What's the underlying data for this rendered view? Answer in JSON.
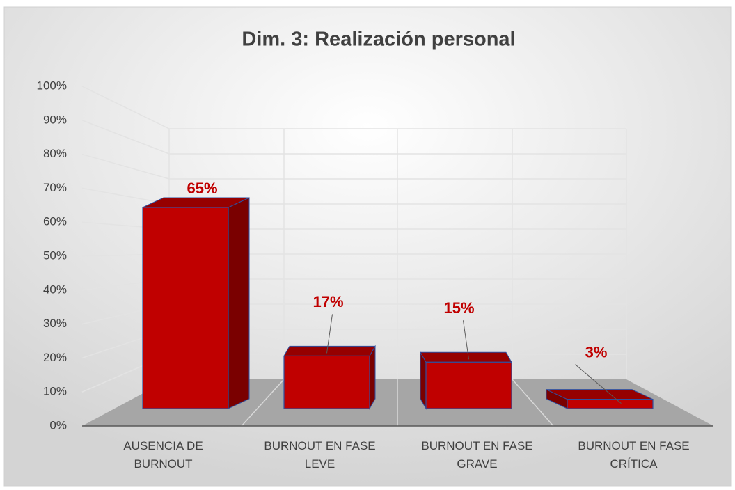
{
  "chart_data": {
    "type": "bar3d",
    "title": "Dim. 3: Realización personal",
    "categories": [
      "AUSENCIA DE BURNOUT",
      "BURNOUT EN FASE LEVE",
      "BURNOUT EN FASE GRAVE",
      "BURNOUT EN FASE CRÍTICA"
    ],
    "values": [
      65,
      17,
      15,
      3
    ],
    "value_labels": [
      "65%",
      "17%",
      "15%",
      "3%"
    ],
    "color": "#c00000",
    "label_color": "#c00000",
    "ylim": [
      0,
      100
    ],
    "yticks": [
      {
        "value": 0,
        "label": "0%"
      },
      {
        "value": 10,
        "label": "10%"
      },
      {
        "value": 20,
        "label": "20%"
      },
      {
        "value": 30,
        "label": "30%"
      },
      {
        "value": 40,
        "label": "40%"
      },
      {
        "value": 50,
        "label": "50%"
      },
      {
        "value": 60,
        "label": "60%"
      },
      {
        "value": 70,
        "label": "70%"
      },
      {
        "value": 80,
        "label": "80%"
      },
      {
        "value": 90,
        "label": "90%"
      },
      {
        "value": 100,
        "label": "100%"
      }
    ],
    "grid": true
  }
}
